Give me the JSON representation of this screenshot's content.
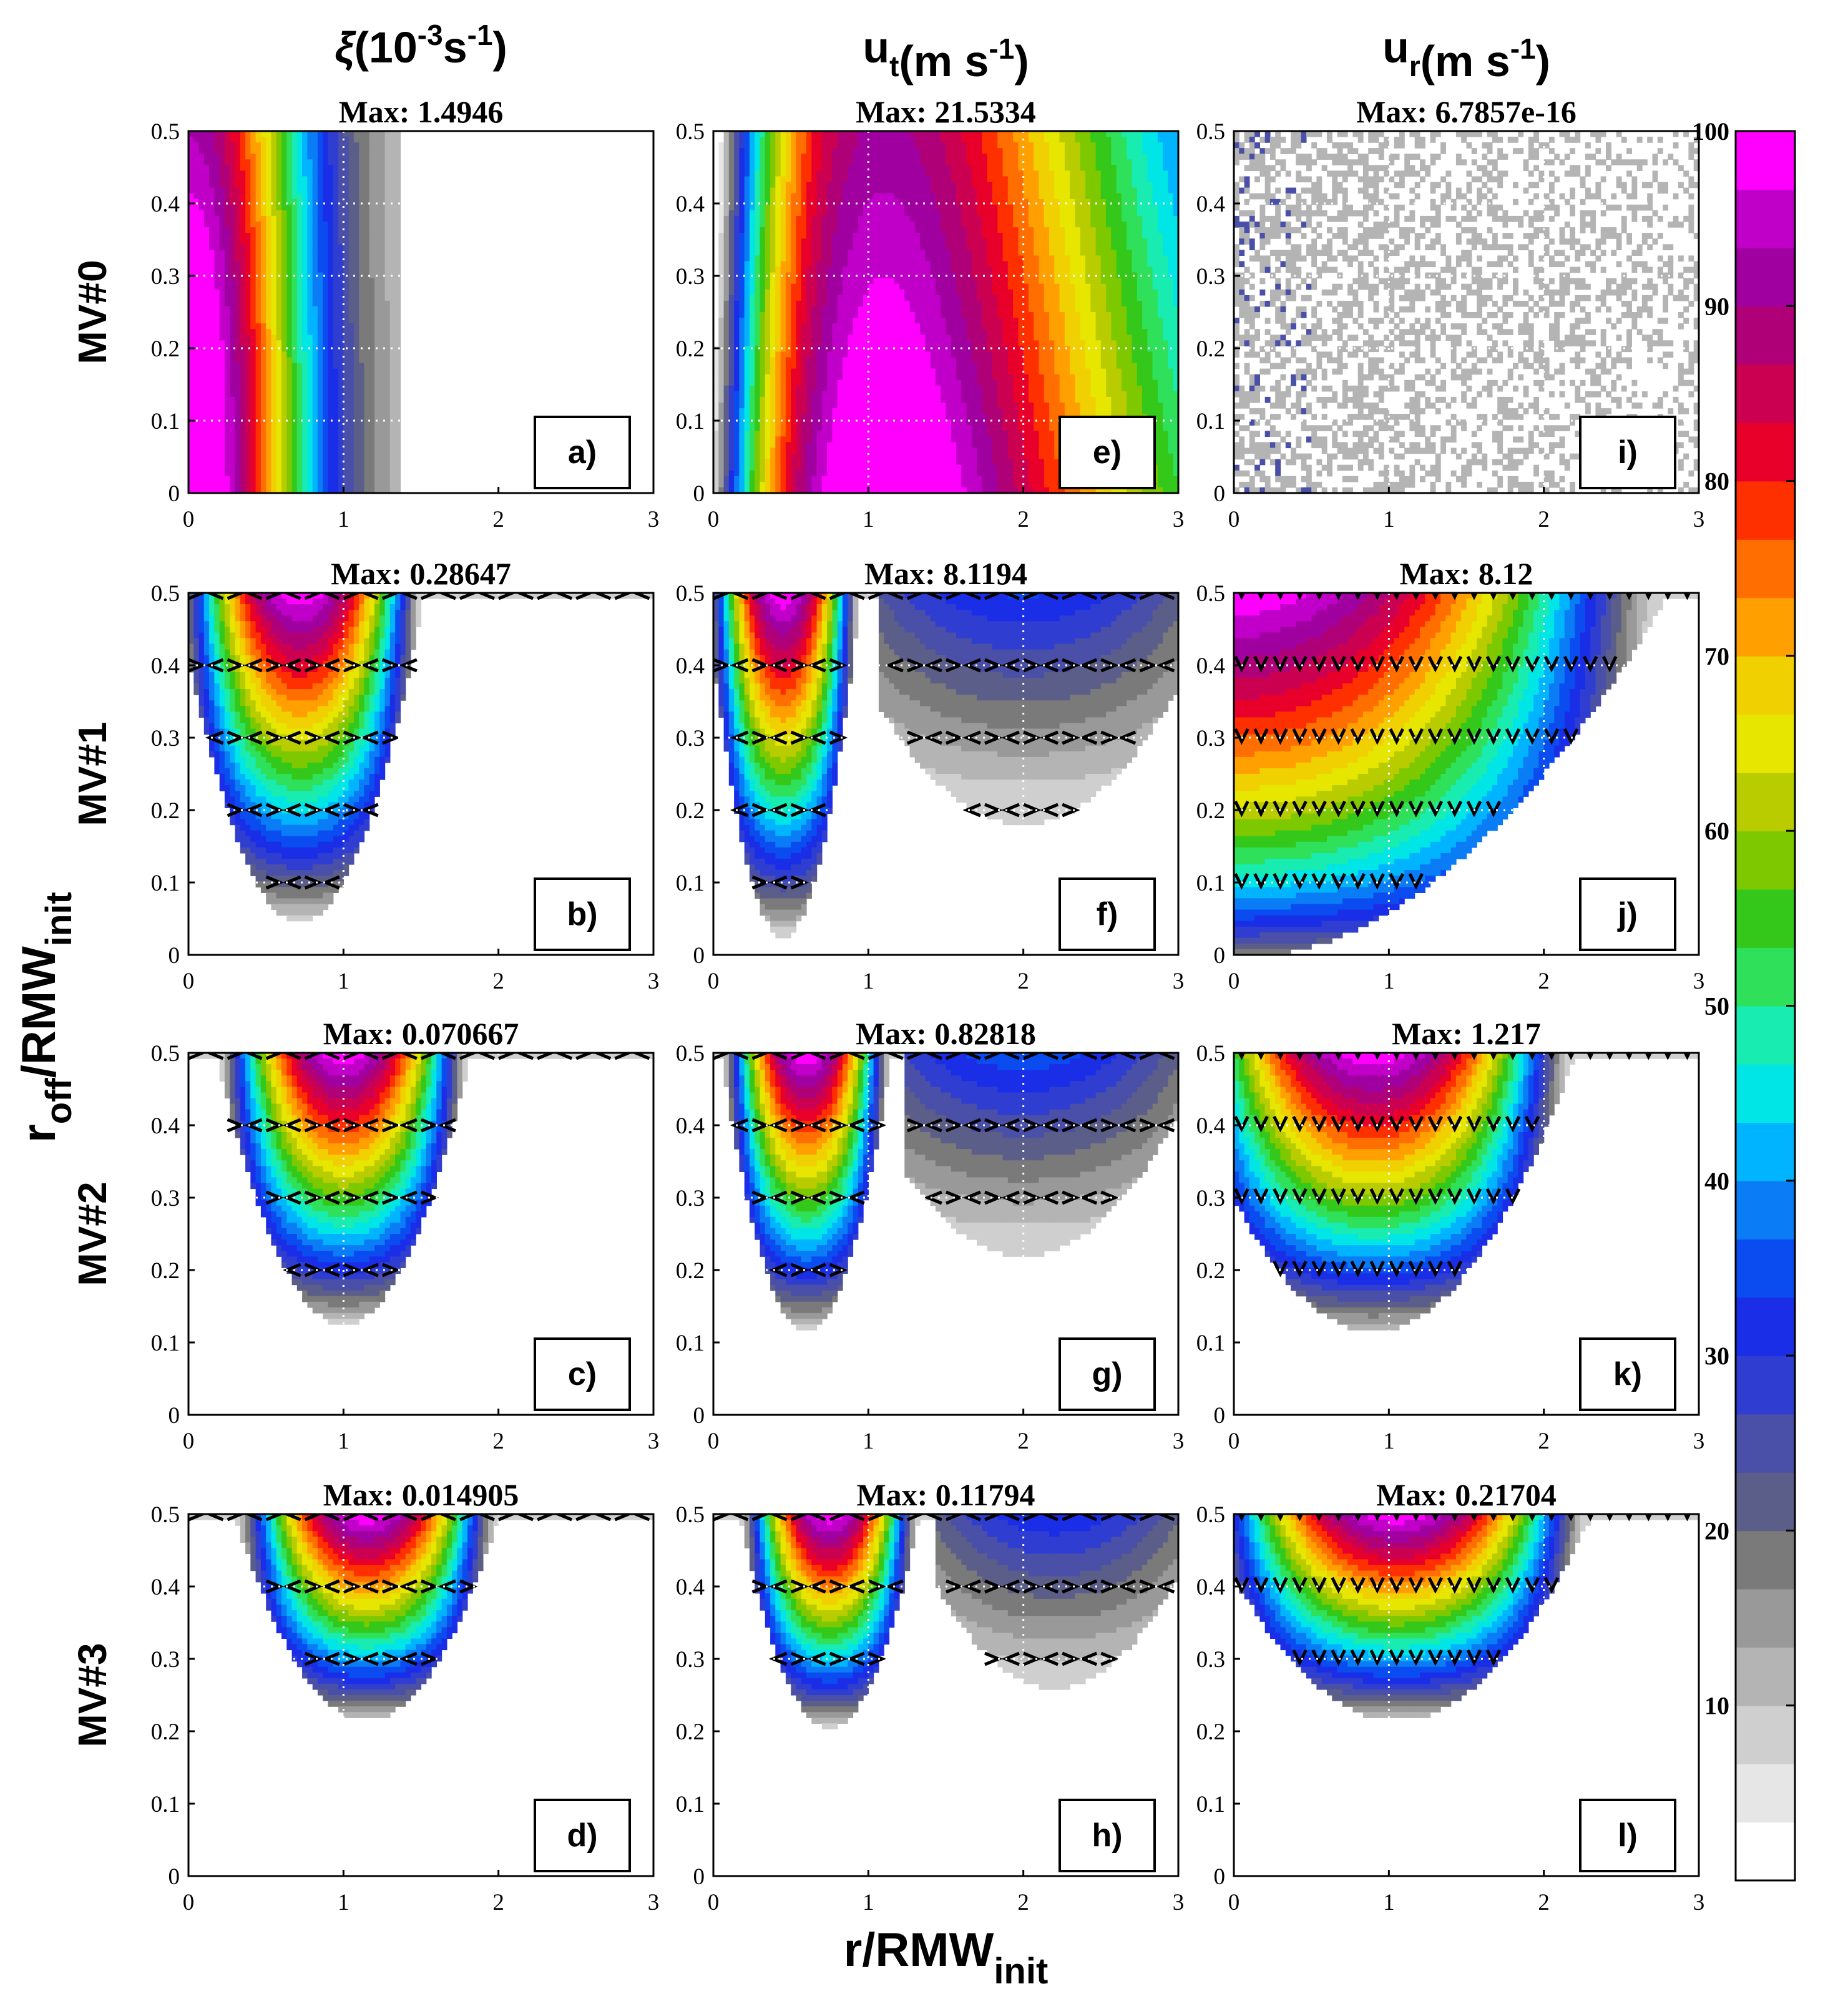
{
  "chart_data": {
    "type": "heatmap",
    "description_kind": "3x4 grid of filled-contour panels, percent of panel maximum",
    "x_label": "r/RMW",
    "x_label_sub": "init",
    "y_label_parts": [
      "r",
      "off",
      "/RMW",
      "init"
    ],
    "xlim": [
      0,
      3
    ],
    "ylim": [
      0,
      0.5
    ],
    "x_ticks": [
      0,
      1,
      2,
      3
    ],
    "x_tick_labels": [
      "0",
      "1",
      "2",
      "3"
    ],
    "y_ticks": [
      0,
      0.1,
      0.2,
      0.3,
      0.4,
      0.5
    ],
    "y_tick_labels": [
      "0",
      "0.1",
      "0.2",
      "0.3",
      "0.4",
      "0.5"
    ],
    "grid": true,
    "columns": [
      {
        "symbol": "ξ",
        "label_open": "(10",
        "sup1": "-3",
        "label_mid": "s",
        "sup2": "-1",
        "label_close": ")"
      },
      {
        "symbol": "u",
        "sub": "t",
        "label_open": "(m s",
        "sup1": "-1",
        "label_close": ")"
      },
      {
        "symbol": "u",
        "sub": "r",
        "label_open": "(m s",
        "sup1": "-1",
        "label_close": ")"
      }
    ],
    "rows": [
      "MV#0",
      "MV#1",
      "MV#2",
      "MV#3"
    ],
    "panels": [
      {
        "tag": "a)",
        "row": 0,
        "col": 0,
        "max_label": "Max: 1.4946",
        "max": 1.4946,
        "kind": "xi0"
      },
      {
        "tag": "b)",
        "row": 1,
        "col": 0,
        "max_label": "Max: 0.28647",
        "max": 0.28647,
        "kind": "bowl",
        "params": {
          "cx": 0.72,
          "w": 0.8,
          "y0": 0.05,
          "sharp": 0.8
        }
      },
      {
        "tag": "c)",
        "row": 2,
        "col": 0,
        "max_label": "Max: 0.070667",
        "max": 0.070667,
        "kind": "bowl",
        "params": {
          "cx": 1.0,
          "w": 0.82,
          "y0": 0.13,
          "sharp": 0.8
        }
      },
      {
        "tag": "d)",
        "row": 3,
        "col": 0,
        "max_label": "Max: 0.014905",
        "max": 0.014905,
        "kind": "bowl",
        "params": {
          "cx": 1.15,
          "w": 0.85,
          "y0": 0.22,
          "sharp": 0.8
        }
      },
      {
        "tag": "e)",
        "row": 0,
        "col": 1,
        "max_label": "Max: 21.5334",
        "max": 21.5334,
        "kind": "ut0"
      },
      {
        "tag": "f)",
        "row": 1,
        "col": 1,
        "max_label": "Max: 8.1194",
        "max": 8.1194,
        "kind": "double",
        "params": {
          "cx": 0.45,
          "w": 0.5,
          "y0": 0.03,
          "cx2": 2.0,
          "w2": 1.3,
          "y02": 0.18,
          "amp2": 0.32
        }
      },
      {
        "tag": "g)",
        "row": 2,
        "col": 1,
        "max_label": "Max: 0.82818",
        "max": 0.82818,
        "kind": "double",
        "params": {
          "cx": 0.6,
          "w": 0.55,
          "y0": 0.12,
          "cx2": 2.0,
          "w2": 1.2,
          "y02": 0.22,
          "amp2": 0.38
        }
      },
      {
        "tag": "h)",
        "row": 3,
        "col": 1,
        "max_label": "Max: 0.11794",
        "max": 0.11794,
        "kind": "double",
        "params": {
          "cx": 0.75,
          "w": 0.58,
          "y0": 0.21,
          "cx2": 2.2,
          "w2": 1.0,
          "y02": 0.26,
          "amp2": 0.4
        }
      },
      {
        "tag": "i)",
        "row": 0,
        "col": 2,
        "max_label": "Max: 6.7857e-16",
        "max": 6.7857e-16,
        "kind": "noise"
      },
      {
        "tag": "j)",
        "row": 1,
        "col": 2,
        "max_label": "Max: 8.12",
        "max": 8.12,
        "kind": "bowl",
        "params": {
          "cx": 0.0,
          "w": 2.8,
          "y0": 0.0,
          "sharp": 0.55
        }
      },
      {
        "tag": "k)",
        "row": 2,
        "col": 2,
        "max_label": "Max: 1.217",
        "max": 1.217,
        "kind": "bowl",
        "params": {
          "cx": 0.9,
          "w": 1.3,
          "y0": 0.12,
          "sharp": 0.75
        }
      },
      {
        "tag": "l)",
        "row": 3,
        "col": 2,
        "max_label": "Max: 0.21704",
        "max": 0.21704,
        "kind": "bowl",
        "params": {
          "cx": 1.05,
          "w": 1.25,
          "y0": 0.22,
          "sharp": 0.8
        }
      }
    ],
    "colorbar": {
      "range": [
        0,
        100
      ],
      "tick_values": [
        10,
        20,
        30,
        40,
        50,
        60,
        70,
        80,
        90,
        100
      ],
      "tick_labels": [
        "10",
        "20",
        "30",
        "40",
        "50",
        "60",
        "70",
        "80",
        "90",
        "100"
      ],
      "colors": [
        "#ffffff",
        "#e6e6e6",
        "#cfcfcf",
        "#b4b4b4",
        "#999999",
        "#7a7a7a",
        "#5c5e8a",
        "#4a4fa8",
        "#2f3ed0",
        "#1a2ee8",
        "#0a4cf0",
        "#0a7cf5",
        "#00b4ff",
        "#00e5e5",
        "#18ecb0",
        "#2ee05a",
        "#34c81a",
        "#7ec800",
        "#b8cc00",
        "#e6e600",
        "#f0d000",
        "#ffa000",
        "#ff6e00",
        "#ff3000",
        "#e8002a",
        "#cc0050",
        "#b00078",
        "#a000a0",
        "#c000c8",
        "#ff00ff"
      ]
    }
  }
}
